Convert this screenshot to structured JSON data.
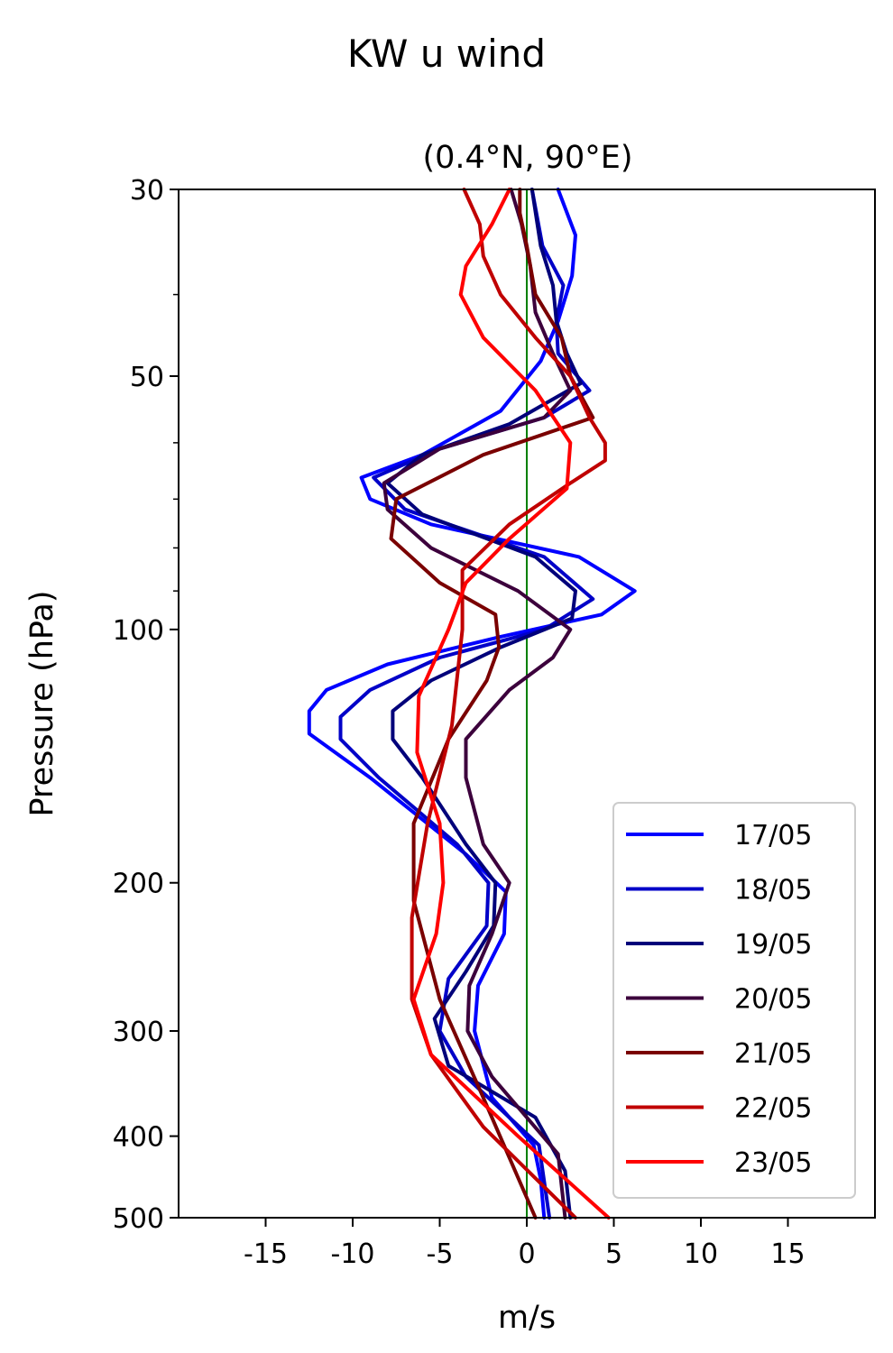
{
  "suptitle": "KW u wind",
  "chart_data": {
    "type": "line",
    "title": "(0.4°N, 90°E)",
    "xlabel": "m/s",
    "ylabel": "Pressure (hPa)",
    "xlim": [
      -20,
      20
    ],
    "ylim": [
      500,
      30
    ],
    "yscale": "log",
    "xticks": [
      -15,
      -10,
      -5,
      0,
      5,
      10,
      15
    ],
    "xtick_labels": [
      "-15",
      "-10",
      "-5",
      "0",
      "5",
      "10",
      "15"
    ],
    "yticks": [
      30,
      50,
      100,
      200,
      300,
      400,
      500
    ],
    "ytick_labels": [
      "30",
      "50",
      "100",
      "200",
      "300",
      "400",
      "500"
    ],
    "grid": false,
    "legend": "lower-right",
    "reference_line": {
      "x": 0,
      "color": "#008000"
    },
    "series": [
      {
        "name": "17/05",
        "color": "#0000ff",
        "x": [
          1.8,
          2.8,
          2.6,
          1.8,
          0.8,
          -1.5,
          -6.0,
          -9.5,
          -9.0,
          -5.5,
          3.0,
          6.2,
          4.3,
          -1.5,
          -8.0,
          -11.5,
          -12.5,
          -12.5,
          -9.0,
          -3.5,
          -1.2,
          -1.3,
          -2.8,
          -3.0,
          -2.0,
          0.4,
          0.8,
          1.0
        ],
        "p": [
          30,
          34,
          38,
          43,
          48,
          55,
          62,
          66,
          70,
          75,
          82,
          90,
          96,
          102,
          110,
          118,
          125,
          133,
          150,
          185,
          205,
          230,
          265,
          300,
          360,
          410,
          450,
          500
        ]
      },
      {
        "name": "18/05",
        "color": "#0000c8",
        "x": [
          0.3,
          0.9,
          2.1,
          1.7,
          1.8,
          3.6,
          1.0,
          -5.0,
          -8.8,
          -7.0,
          1.0,
          3.8,
          1.0,
          -5.0,
          -9.0,
          -10.7,
          -10.7,
          -8.5,
          -4.0,
          -2.2,
          -2.3,
          -4.5,
          -5.0,
          -3.5,
          0.7,
          1.3
        ],
        "p": [
          30,
          35,
          39,
          43,
          47,
          52,
          56,
          61,
          66,
          72,
          82,
          92,
          100,
          108,
          118,
          127,
          135,
          150,
          180,
          200,
          225,
          260,
          300,
          340,
          410,
          500
        ]
      },
      {
        "name": "19/05",
        "color": "#00007a",
        "x": [
          0.3,
          0.8,
          1.5,
          1.7,
          2.3,
          3.1,
          -1.0,
          -6.0,
          -8.0,
          -6.0,
          0.5,
          2.8,
          2.6,
          -1.5,
          -5.5,
          -7.7,
          -7.7,
          -6.0,
          -3.5,
          -1.8,
          -1.9,
          -3.5,
          -5.3,
          -4.5,
          0.5,
          2.2,
          2.5
        ],
        "p": [
          30,
          35,
          39,
          43,
          47,
          51,
          57,
          62,
          67,
          73,
          82,
          90,
          97,
          105,
          115,
          125,
          135,
          150,
          180,
          200,
          225,
          255,
          290,
          330,
          380,
          440,
          500
        ]
      },
      {
        "name": "20/05",
        "color": "#3c003c",
        "x": [
          -0.9,
          -0.3,
          0.2,
          0.5,
          1.5,
          2.5,
          1.0,
          -5.0,
          -8.2,
          -8.0,
          -5.5,
          -0.5,
          2.5,
          1.5,
          -1.0,
          -3.5,
          -3.5,
          -2.5,
          -1.0,
          -2.0,
          -3.3,
          -3.4,
          -2.0,
          1.8,
          2.2
        ],
        "p": [
          30,
          33,
          37,
          42,
          47,
          52,
          56,
          61,
          67,
          72,
          80,
          90,
          100,
          108,
          118,
          135,
          150,
          180,
          200,
          230,
          265,
          300,
          340,
          420,
          500
        ]
      },
      {
        "name": "21/05",
        "color": "#7a0000",
        "x": [
          -0.4,
          -0.4,
          0.0,
          0.5,
          2.0,
          2.5,
          3.8,
          -2.5,
          -7.5,
          -7.8,
          -5.0,
          -1.8,
          -1.6,
          -2.3,
          -4.5,
          -6.5,
          -6.5,
          -5.0,
          -2.5,
          0.5
        ],
        "p": [
          30,
          32,
          35,
          40,
          45,
          50,
          56,
          62,
          70,
          78,
          88,
          96,
          105,
          115,
          135,
          170,
          210,
          275,
          360,
          500
        ]
      },
      {
        "name": "22/05",
        "color": "#c00000",
        "x": [
          -3.6,
          -2.7,
          -2.5,
          -1.5,
          0.5,
          2.5,
          3.6,
          4.5,
          4.5,
          2.5,
          -1.0,
          -3.7,
          -3.7,
          -4.3,
          -5.7,
          -6.6,
          -6.6,
          -5.5,
          -2.5,
          2.8
        ],
        "p": [
          30,
          33,
          36,
          40,
          45,
          50,
          56,
          60,
          63,
          67,
          75,
          85,
          100,
          130,
          170,
          220,
          275,
          320,
          390,
          500
        ]
      },
      {
        "name": "23/05",
        "color": "#ff0000",
        "x": [
          -1.0,
          -2.0,
          -3.5,
          -3.8,
          -2.5,
          0.5,
          2.5,
          2.3,
          -1.0,
          -3.5,
          -4.5,
          -6.2,
          -6.3,
          -5.0,
          -4.8,
          -5.2,
          -6.5,
          -5.5,
          -0.5,
          4.7
        ],
        "p": [
          30,
          33,
          37,
          40,
          45,
          52,
          60,
          68,
          78,
          88,
          100,
          120,
          140,
          170,
          200,
          230,
          275,
          320,
          400,
          500
        ]
      }
    ]
  }
}
